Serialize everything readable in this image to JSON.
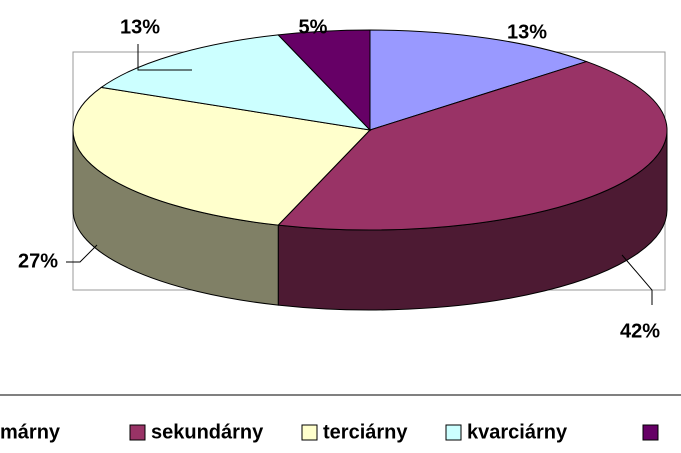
{
  "chart_data": {
    "type": "pie3d",
    "categories": [
      "márny",
      "sekundárny",
      "terciárny",
      "kvarciárny",
      null
    ],
    "values": [
      13,
      42,
      27,
      13,
      5
    ],
    "value_labels": [
      "13%",
      "42%",
      "27%",
      "13%",
      "5%"
    ],
    "colors": [
      "#9999ff",
      "#993366",
      "#ffffcc",
      "#ccffff",
      "#660066"
    ],
    "side_colors": [
      "#5c5c99",
      "#4d1a33",
      "#808066",
      "#669999",
      "#330033"
    ],
    "legend": "bottom"
  }
}
